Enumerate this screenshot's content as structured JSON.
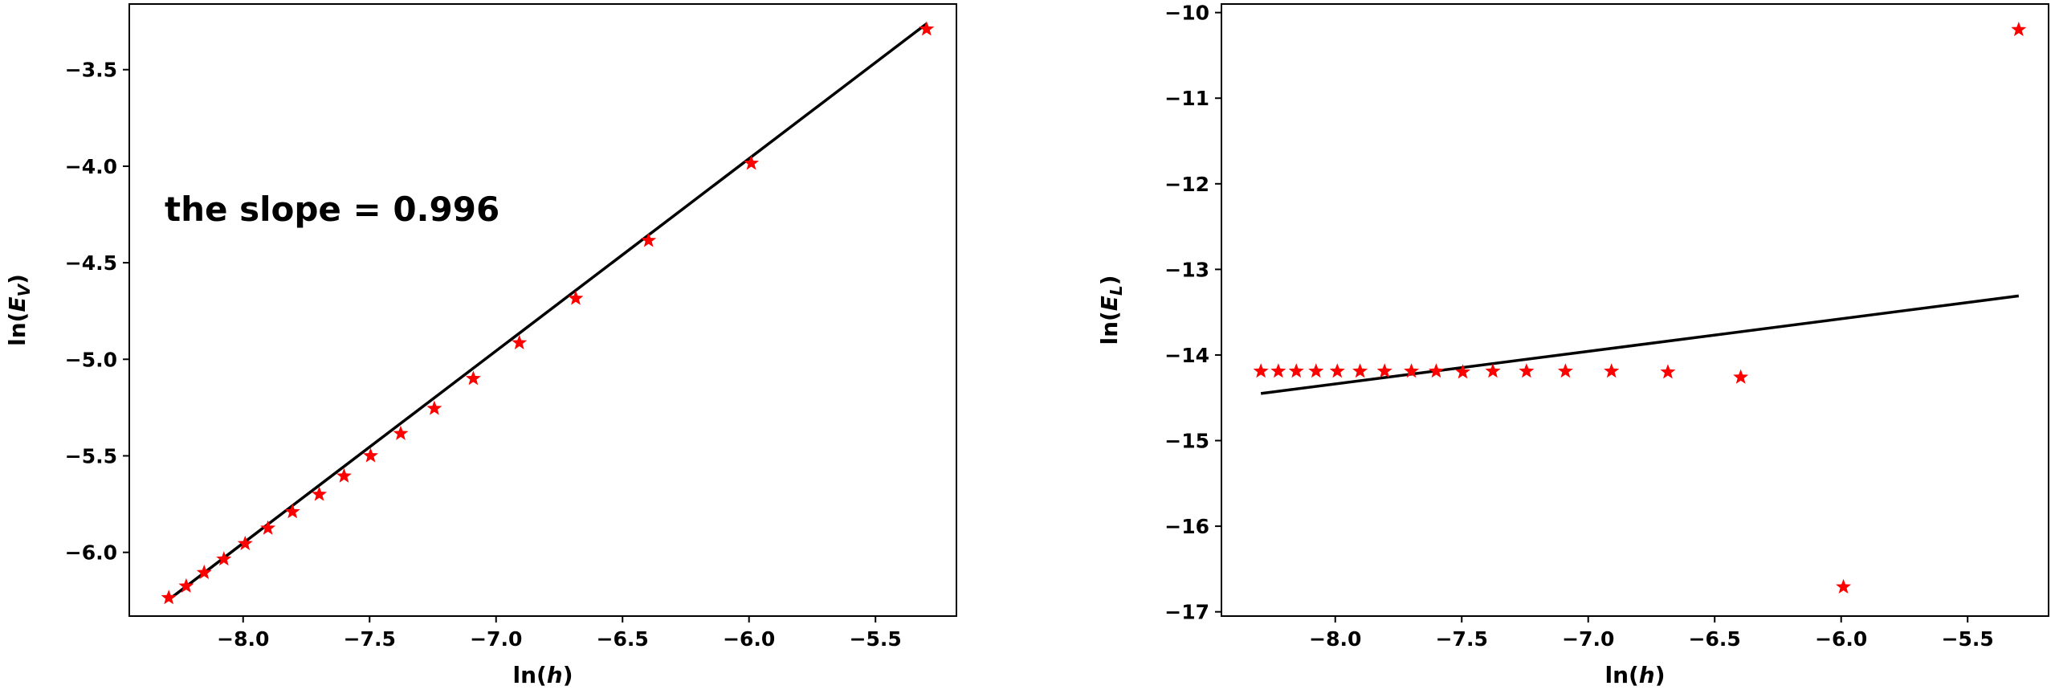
{
  "chart_data": [
    {
      "type": "scatter",
      "xlabel": "ln(h)",
      "ylabel": "ln(E_V)",
      "annotation": "the slope = 0.996",
      "xlim": [
        -8.45,
        -5.18
      ],
      "ylim": [
        -6.33,
        -3.16
      ],
      "xticks": [
        -8.0,
        -7.5,
        -7.0,
        -6.5,
        -6.0,
        -5.5
      ],
      "xtick_labels": [
        "−8.0",
        "−7.5",
        "−7.0",
        "−6.5",
        "−6.0",
        "−5.5"
      ],
      "yticks": [
        -6.0,
        -5.5,
        -5.0,
        -4.5,
        -4.0,
        -3.5
      ],
      "ytick_labels": [
        "−6.0",
        "−5.5",
        "−5.0",
        "−4.5",
        "−4.0",
        "−3.5"
      ],
      "points": {
        "x": [
          -8.294,
          -8.225,
          -8.154,
          -8.076,
          -7.992,
          -7.902,
          -7.805,
          -7.699,
          -7.601,
          -7.496,
          -7.377,
          -7.244,
          -7.09,
          -6.908,
          -6.685,
          -6.397,
          -5.991,
          -5.298
        ],
        "y": [
          -6.235,
          -6.175,
          -6.105,
          -6.035,
          -5.955,
          -5.875,
          -5.79,
          -5.7,
          -5.605,
          -5.5,
          -5.385,
          -5.255,
          -5.1,
          -4.915,
          -4.685,
          -4.385,
          -3.985,
          -3.29
        ]
      },
      "marker": "star",
      "marker_color": "#ff0000",
      "fit_line": {
        "x": [
          -8.294,
          -5.298
        ],
        "y": [
          -6.245,
          -3.262
        ],
        "color": "#000000"
      },
      "grid": false
    },
    {
      "type": "scatter",
      "xlabel": "ln(h)",
      "ylabel": "ln(E_L)",
      "xlim": [
        -8.45,
        -5.18
      ],
      "ylim": [
        -17.05,
        -9.9
      ],
      "xticks": [
        -8.0,
        -7.5,
        -7.0,
        -6.5,
        -6.0,
        -5.5
      ],
      "xtick_labels": [
        "−8.0",
        "−7.5",
        "−7.0",
        "−6.5",
        "−6.0",
        "−5.5"
      ],
      "yticks": [
        -17,
        -16,
        -15,
        -14,
        -13,
        -12,
        -11,
        -10
      ],
      "ytick_labels": [
        "−17",
        "−16",
        "−15",
        "−14",
        "−13",
        "−12",
        "−11",
        "−10"
      ],
      "points": {
        "x": [
          -8.294,
          -8.225,
          -8.154,
          -8.076,
          -7.992,
          -7.902,
          -7.805,
          -7.699,
          -7.601,
          -7.496,
          -7.377,
          -7.244,
          -7.09,
          -6.908,
          -6.685,
          -6.397,
          -5.991,
          -5.298
        ],
        "y": [
          -14.19,
          -14.19,
          -14.19,
          -14.19,
          -14.19,
          -14.19,
          -14.19,
          -14.19,
          -14.19,
          -14.2,
          -14.19,
          -14.19,
          -14.19,
          -14.19,
          -14.2,
          -14.26,
          -16.71,
          -10.2
        ]
      },
      "marker": "star",
      "marker_color": "#ff0000",
      "fit_line": {
        "x": [
          -8.294,
          -5.298
        ],
        "y": [
          -14.45,
          -13.31
        ],
        "color": "#000000"
      },
      "grid": false
    }
  ]
}
